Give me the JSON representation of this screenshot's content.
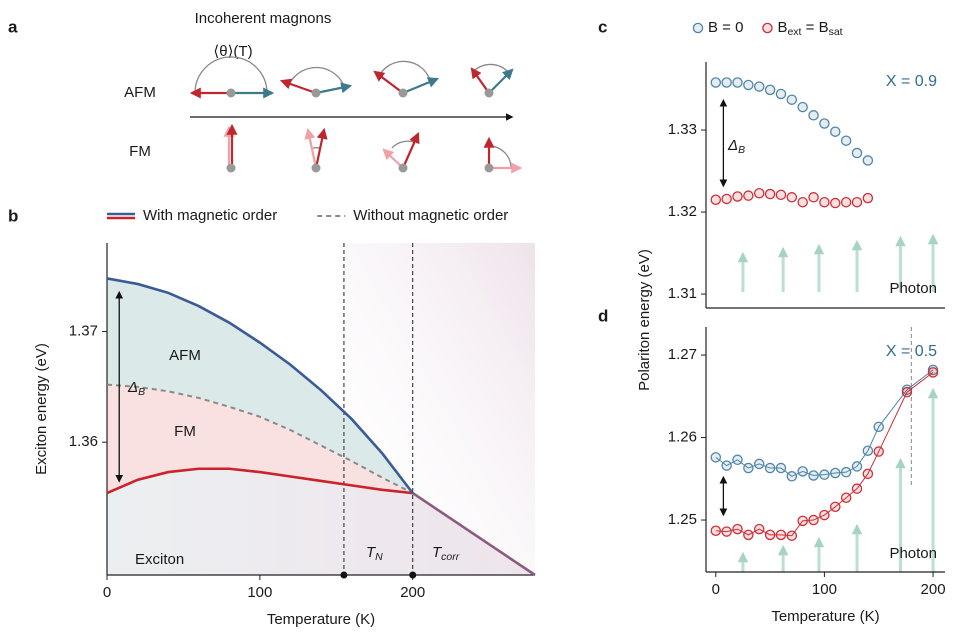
{
  "panel_labels": [
    "a",
    "b",
    "c",
    "d"
  ],
  "diagram": {
    "title": "Incoherent magnons",
    "angle_label": "⟨θ⟩(T)",
    "rows": [
      "AFM",
      "FM"
    ]
  },
  "chart_data": [
    {
      "type": "line",
      "xlabel": "Temperature (K)",
      "ylabel": "Exciton energy (eV)",
      "x": [
        0,
        20,
        40,
        60,
        80,
        100,
        120,
        140,
        160,
        180,
        200,
        240,
        280
      ],
      "xlim": [
        0,
        280
      ],
      "xticks": [
        0,
        100,
        200
      ],
      "ylim": [
        1.348,
        1.378
      ],
      "yticks": [
        1.36,
        1.37
      ],
      "series": [
        {
          "color": "#8c5a7e",
          "values": [
            null,
            null,
            null,
            null,
            null,
            null,
            null,
            null,
            null,
            null,
            1.3554,
            1.3517,
            1.348
          ]
        },
        {
          "name": "With magnetic order",
          "color": "#3b5b96",
          "values": [
            1.3748,
            1.3743,
            1.3735,
            1.3723,
            1.3708,
            1.369,
            1.367,
            1.3647,
            1.3621,
            1.359,
            1.3554,
            null,
            null
          ]
        },
        {
          "color": "#cc2229",
          "values": [
            1.3554,
            1.3566,
            1.3573,
            1.3576,
            1.3576,
            1.3573,
            1.3569,
            1.3565,
            1.3561,
            1.3557,
            1.3554,
            null,
            null
          ]
        },
        {
          "name": "Without magnetic order",
          "color": "#8a8a8a",
          "dash": true,
          "values": [
            1.3652,
            1.365,
            1.3646,
            1.364,
            1.3632,
            1.3623,
            1.3611,
            1.3597,
            1.3583,
            1.3568,
            1.3554,
            null,
            null
          ]
        }
      ],
      "vlines": [
        155,
        200
      ],
      "annotations": {
        "afm": "AFM",
        "fm": "FM",
        "delta": [
          "Δ",
          "B"
        ],
        "region": "Exciton",
        "tn": [
          "T",
          "N"
        ],
        "tcorr": [
          "T",
          "corr"
        ]
      }
    },
    {
      "type": "scatter",
      "ylabel": "Polariton energy (eV)",
      "x": [
        0,
        10,
        20,
        30,
        40,
        50,
        60,
        70,
        80,
        90,
        100,
        110,
        120,
        130,
        140
      ],
      "xlim": [
        -9,
        211
      ],
      "ylim": [
        1.3083,
        1.3383
      ],
      "yticks": [
        1.31,
        1.32,
        1.33
      ],
      "series": [
        {
          "name": [
            "B = 0"
          ],
          "color": "#4f86a8",
          "values": [
            1.3358,
            1.3358,
            1.3358,
            1.3355,
            1.3353,
            1.3349,
            1.3344,
            1.3337,
            1.3328,
            1.3318,
            1.3308,
            1.3298,
            1.3287,
            1.3272,
            1.3263
          ]
        },
        {
          "name": [
            "B",
            "ext",
            " = B",
            "sat"
          ],
          "color": "#cf2e36",
          "values": [
            1.3215,
            1.3216,
            1.3219,
            1.322,
            1.3223,
            1.3222,
            1.3221,
            1.3218,
            1.3212,
            1.3218,
            1.3212,
            1.3211,
            1.3212,
            1.3212,
            1.3217
          ]
        }
      ],
      "annotations": {
        "label": "X = 0.9",
        "delta": [
          "Δ",
          "B"
        ],
        "photon": "Photon"
      }
    },
    {
      "type": "scatter",
      "connect": true,
      "xlabel": "Temperature (K)",
      "x": [
        0,
        10,
        20,
        30,
        40,
        50,
        60,
        70,
        80,
        90,
        100,
        110,
        120,
        130,
        140,
        150,
        176,
        200
      ],
      "xlim": [
        -9,
        211
      ],
      "xticks": [
        0,
        100,
        200
      ],
      "ylim": [
        1.2437,
        1.2734
      ],
      "yticks": [
        1.25,
        1.26,
        1.27
      ],
      "series": [
        {
          "color": "#4f86a8",
          "values": [
            1.2576,
            1.2566,
            1.2573,
            1.2563,
            1.2568,
            1.2563,
            1.2563,
            1.2553,
            1.2559,
            1.2554,
            1.2555,
            1.2557,
            1.2558,
            1.2565,
            1.2584,
            1.2613,
            1.2658,
            1.2682
          ]
        },
        {
          "color": "#cf2e36",
          "values": [
            1.2487,
            1.2486,
            1.2489,
            1.2482,
            1.2489,
            1.2482,
            1.2482,
            1.2481,
            1.2499,
            1.25,
            1.2506,
            1.2516,
            1.2527,
            1.2538,
            1.2556,
            1.2583,
            1.2655,
            1.2679
          ]
        }
      ],
      "vlines": [
        180
      ],
      "annotations": {
        "label": "X = 0.5",
        "photon": "Photon"
      }
    }
  ]
}
